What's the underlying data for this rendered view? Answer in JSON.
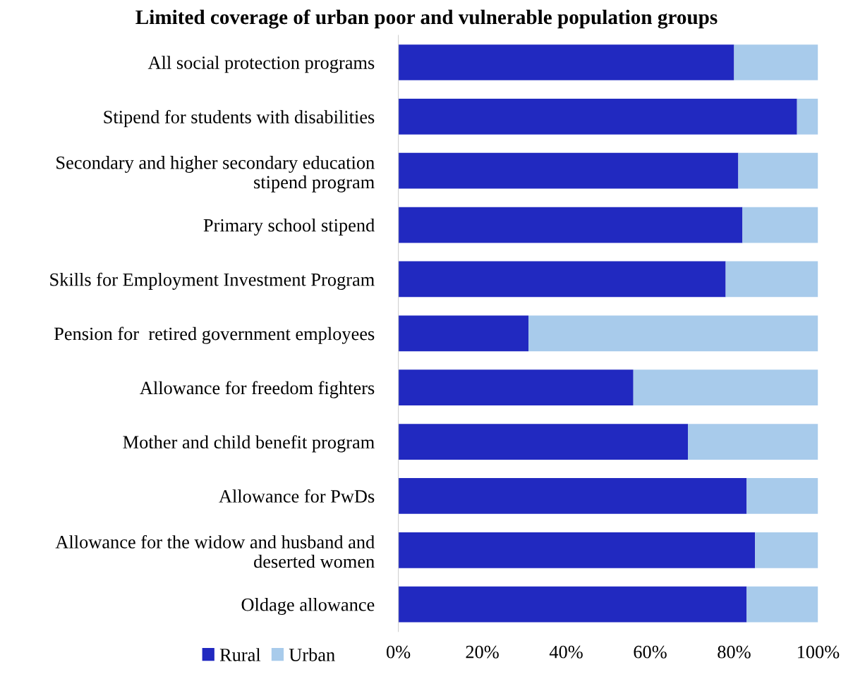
{
  "chart_data": {
    "type": "bar",
    "orientation": "horizontal",
    "stacked": true,
    "title": "Limited coverage of urban poor and vulnerable population groups",
    "categories": [
      "All social protection programs",
      "Stipend for students with disabilities",
      "Secondary and higher secondary education\nstipend program",
      "Primary school stipend",
      "Skills for Employment Investment Program",
      "Pension for  retired government employees",
      "Allowance for freedom fighters",
      "Mother and child benefit program",
      "Allowance for PwDs",
      "Allowance for the widow and husband and\ndeserted women",
      "Oldage allowance"
    ],
    "series": [
      {
        "name": "Rural",
        "color": "#2129c0",
        "values": [
          80,
          95,
          81,
          82,
          78,
          31,
          56,
          69,
          83,
          85,
          83
        ]
      },
      {
        "name": "Urban",
        "color": "#a8cbeb",
        "values": [
          20,
          5,
          19,
          18,
          22,
          69,
          44,
          31,
          17,
          15,
          17
        ]
      }
    ],
    "xlim": [
      0,
      100
    ],
    "xticks": [
      {
        "value": 0,
        "label": "0%"
      },
      {
        "value": 20,
        "label": "20%"
      },
      {
        "value": 40,
        "label": "40%"
      },
      {
        "value": 60,
        "label": "60%"
      },
      {
        "value": 80,
        "label": "80%"
      },
      {
        "value": 100,
        "label": "100%"
      }
    ],
    "grid": false,
    "legend": "bottom left"
  }
}
